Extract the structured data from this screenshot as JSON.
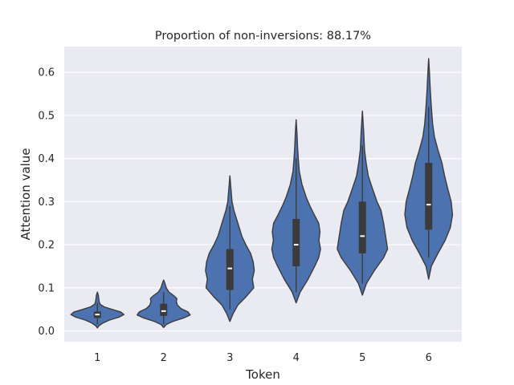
{
  "chart_data": {
    "type": "violin",
    "title": "Proportion of non-inversions: 88.17%",
    "xlabel": "Token",
    "ylabel": "Attention value",
    "categories": [
      "1",
      "2",
      "3",
      "4",
      "5",
      "6"
    ],
    "ylim": [
      -0.025,
      0.66
    ],
    "yticks": [
      0.0,
      0.1,
      0.2,
      0.3,
      0.4,
      0.5,
      0.6
    ],
    "ytick_labels": [
      "0.0",
      "0.1",
      "0.2",
      "0.3",
      "0.4",
      "0.5",
      "0.6"
    ],
    "grid": true,
    "colors": {
      "fill": "#4c72b0",
      "edge": "#3b3b3b",
      "box": "#3b3b3b",
      "median": "#ffffff",
      "background": "#eaeaf2",
      "grid": "#ffffff"
    },
    "violins": [
      {
        "category": "1",
        "min": 0.007,
        "max": 0.09,
        "q1": 0.03,
        "median": 0.038,
        "q3": 0.045,
        "whisker_low": 0.015,
        "whisker_high": 0.065,
        "shape": [
          [
            0.007,
            0.0
          ],
          [
            0.012,
            0.06
          ],
          [
            0.018,
            0.2
          ],
          [
            0.025,
            0.45
          ],
          [
            0.032,
            0.82
          ],
          [
            0.038,
            1.0
          ],
          [
            0.044,
            0.88
          ],
          [
            0.05,
            0.55
          ],
          [
            0.056,
            0.25
          ],
          [
            0.062,
            0.1
          ],
          [
            0.068,
            0.07
          ],
          [
            0.075,
            0.05
          ],
          [
            0.082,
            0.04
          ],
          [
            0.09,
            0.0
          ]
        ]
      },
      {
        "category": "2",
        "min": 0.008,
        "max": 0.118,
        "q1": 0.035,
        "median": 0.046,
        "q3": 0.063,
        "whisker_low": 0.015,
        "whisker_high": 0.09,
        "shape": [
          [
            0.008,
            0.0
          ],
          [
            0.015,
            0.1
          ],
          [
            0.022,
            0.35
          ],
          [
            0.03,
            0.75
          ],
          [
            0.037,
            1.0
          ],
          [
            0.044,
            0.92
          ],
          [
            0.052,
            0.65
          ],
          [
            0.06,
            0.52
          ],
          [
            0.068,
            0.48
          ],
          [
            0.075,
            0.5
          ],
          [
            0.082,
            0.38
          ],
          [
            0.09,
            0.2
          ],
          [
            0.1,
            0.1
          ],
          [
            0.11,
            0.05
          ],
          [
            0.118,
            0.0
          ]
        ]
      },
      {
        "category": "3",
        "min": 0.022,
        "max": 0.36,
        "q1": 0.095,
        "median": 0.145,
        "q3": 0.19,
        "whisker_low": 0.05,
        "whisker_high": 0.29,
        "shape": [
          [
            0.022,
            0.0
          ],
          [
            0.04,
            0.12
          ],
          [
            0.06,
            0.3
          ],
          [
            0.08,
            0.62
          ],
          [
            0.1,
            0.9
          ],
          [
            0.12,
            0.85
          ],
          [
            0.14,
            0.92
          ],
          [
            0.16,
            0.88
          ],
          [
            0.18,
            0.78
          ],
          [
            0.2,
            0.6
          ],
          [
            0.22,
            0.45
          ],
          [
            0.24,
            0.35
          ],
          [
            0.26,
            0.25
          ],
          [
            0.28,
            0.15
          ],
          [
            0.3,
            0.08
          ],
          [
            0.33,
            0.04
          ],
          [
            0.36,
            0.0
          ]
        ]
      },
      {
        "category": "4",
        "min": 0.065,
        "max": 0.49,
        "q1": 0.15,
        "median": 0.2,
        "q3": 0.26,
        "whisker_low": 0.09,
        "whisker_high": 0.4,
        "shape": [
          [
            0.065,
            0.0
          ],
          [
            0.09,
            0.15
          ],
          [
            0.12,
            0.45
          ],
          [
            0.15,
            0.7
          ],
          [
            0.17,
            0.85
          ],
          [
            0.19,
            0.92
          ],
          [
            0.21,
            0.86
          ],
          [
            0.23,
            0.9
          ],
          [
            0.25,
            0.85
          ],
          [
            0.27,
            0.68
          ],
          [
            0.29,
            0.52
          ],
          [
            0.31,
            0.38
          ],
          [
            0.34,
            0.22
          ],
          [
            0.37,
            0.12
          ],
          [
            0.4,
            0.08
          ],
          [
            0.43,
            0.05
          ],
          [
            0.46,
            0.03
          ],
          [
            0.49,
            0.0
          ]
        ]
      },
      {
        "category": "5",
        "min": 0.083,
        "max": 0.51,
        "q1": 0.18,
        "median": 0.22,
        "q3": 0.3,
        "whisker_low": 0.11,
        "whisker_high": 0.43,
        "shape": [
          [
            0.083,
            0.0
          ],
          [
            0.11,
            0.15
          ],
          [
            0.14,
            0.45
          ],
          [
            0.17,
            0.8
          ],
          [
            0.19,
            0.95
          ],
          [
            0.21,
            0.9
          ],
          [
            0.23,
            0.85
          ],
          [
            0.25,
            0.8
          ],
          [
            0.28,
            0.7
          ],
          [
            0.3,
            0.55
          ],
          [
            0.33,
            0.38
          ],
          [
            0.36,
            0.22
          ],
          [
            0.39,
            0.14
          ],
          [
            0.42,
            0.08
          ],
          [
            0.46,
            0.05
          ],
          [
            0.49,
            0.02
          ],
          [
            0.51,
            0.0
          ]
        ]
      },
      {
        "category": "6",
        "min": 0.12,
        "max": 0.632,
        "q1": 0.235,
        "median": 0.293,
        "q3": 0.39,
        "whisker_low": 0.17,
        "whisker_high": 0.52,
        "shape": [
          [
            0.12,
            0.0
          ],
          [
            0.15,
            0.1
          ],
          [
            0.18,
            0.35
          ],
          [
            0.21,
            0.62
          ],
          [
            0.24,
            0.82
          ],
          [
            0.27,
            0.9
          ],
          [
            0.3,
            0.85
          ],
          [
            0.33,
            0.72
          ],
          [
            0.36,
            0.6
          ],
          [
            0.39,
            0.5
          ],
          [
            0.42,
            0.35
          ],
          [
            0.45,
            0.22
          ],
          [
            0.48,
            0.15
          ],
          [
            0.52,
            0.1
          ],
          [
            0.56,
            0.06
          ],
          [
            0.6,
            0.03
          ],
          [
            0.632,
            0.0
          ]
        ]
      }
    ]
  }
}
